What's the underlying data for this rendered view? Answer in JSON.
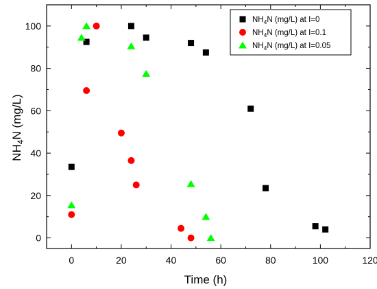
{
  "chart_data": {
    "type": "scatter",
    "xlabel": "Time (h)",
    "ylabel": "NH4N (mg/L)",
    "xlim": [
      -10,
      120
    ],
    "ylim": [
      -5,
      110
    ],
    "x_ticks": [
      0,
      20,
      40,
      60,
      80,
      100,
      120
    ],
    "y_ticks": [
      0,
      20,
      40,
      60,
      80,
      100
    ],
    "legend_position": "top-right",
    "series": [
      {
        "name": "NH4N (mg/L) at I=0",
        "marker": "square",
        "color": "#000000",
        "x": [
          0,
          6,
          24,
          30,
          48,
          54,
          72,
          78,
          98,
          102
        ],
        "y": [
          33.5,
          92.5,
          100,
          94.5,
          92,
          87.5,
          61,
          23.5,
          5.5,
          4
        ]
      },
      {
        "name": "NH4N (mg/L) at I=0.1",
        "marker": "circle",
        "color": "#ff0000",
        "x": [
          0,
          6,
          10,
          20,
          24,
          26,
          44,
          48
        ],
        "y": [
          11,
          69.5,
          100,
          49.5,
          36.5,
          25,
          4.5,
          0
        ]
      },
      {
        "name": "NH4N (mg/L) at I=0.05",
        "marker": "triangle",
        "color": "#00ff00",
        "x": [
          0,
          4,
          6,
          24,
          30,
          48,
          54,
          56
        ],
        "y": [
          15.5,
          94.5,
          100,
          90.5,
          77.5,
          25.5,
          10,
          0
        ]
      }
    ]
  }
}
